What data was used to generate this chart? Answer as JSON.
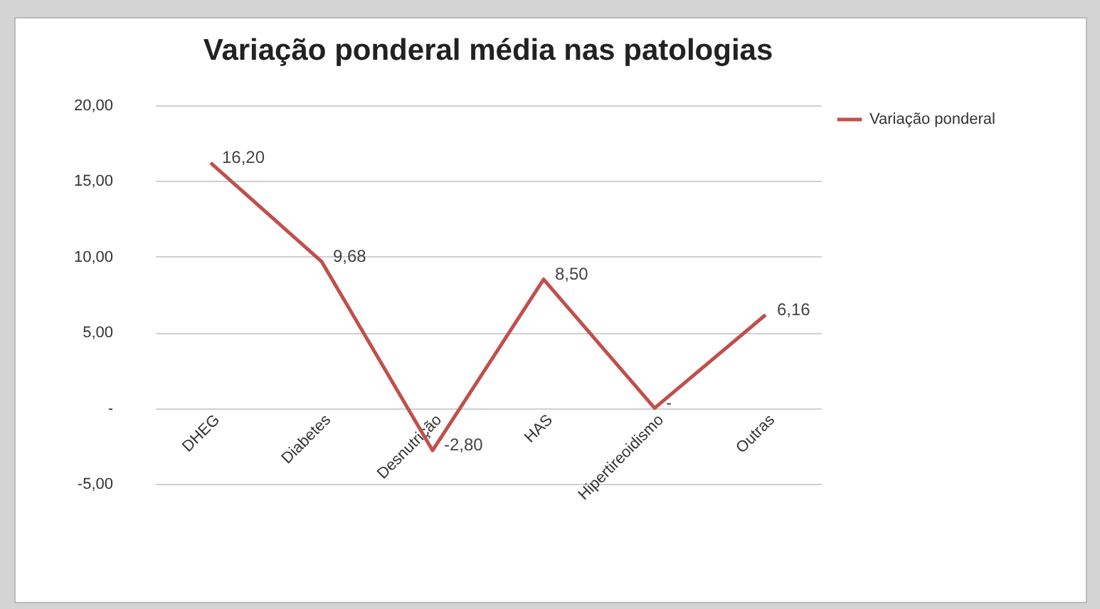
{
  "chart_data": {
    "type": "line",
    "title": "Variação ponderal média nas patologias",
    "categories": [
      "DHEG",
      "Diabetes",
      "Desnutrição",
      "HAS",
      "Hipertireoidismo",
      "Outras"
    ],
    "series": [
      {
        "name": "Variação ponderal",
        "color": "#c0504d",
        "values": [
          16.2,
          9.68,
          -2.8,
          8.5,
          0,
          6.16
        ],
        "value_labels": [
          "16,20",
          "9,68",
          "-2,80",
          "8,50",
          "-",
          "6,16"
        ]
      }
    ],
    "ylim": [
      -5,
      20
    ],
    "yticks": [
      {
        "value": -5,
        "label": "-5,00"
      },
      {
        "value": 0,
        "label": "-"
      },
      {
        "value": 5,
        "label": "5,00"
      },
      {
        "value": 10,
        "label": "10,00"
      },
      {
        "value": 15,
        "label": "15,00"
      },
      {
        "value": 20,
        "label": "20,00"
      }
    ],
    "grid": "y",
    "legend": "right",
    "marker": "none",
    "line_style": "solid"
  }
}
